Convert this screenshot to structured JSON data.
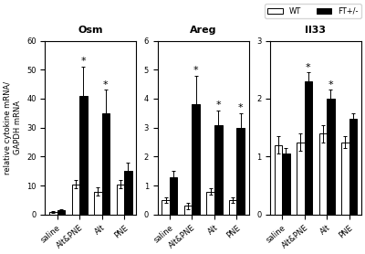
{
  "chart_data": [
    {
      "type": "bar",
      "title": "Osm",
      "y_label": "relative cytokine mRNA/\nGAPDH mRNA",
      "categories": [
        "saline",
        "Alt&PNE",
        "Alt",
        "PNE"
      ],
      "series": [
        {
          "name": "WT",
          "color": "white",
          "values": [
            1.0,
            10.5,
            8.0,
            10.5
          ],
          "errors": [
            0.3,
            1.5,
            1.5,
            1.5
          ]
        },
        {
          "name": "FT+/-",
          "color": "black",
          "values": [
            1.5,
            41.0,
            35.0,
            15.0
          ],
          "errors": [
            0.3,
            10.0,
            8.0,
            3.0
          ]
        }
      ],
      "ylim": [
        0,
        60
      ],
      "yticks": [
        0,
        10,
        20,
        30,
        40,
        50,
        60
      ],
      "annotations": [
        {
          "text": "*",
          "category": "Alt&PNE",
          "series": "FT+/-"
        },
        {
          "text": "*",
          "category": "Alt",
          "series": "FT+/-"
        }
      ]
    },
    {
      "type": "bar",
      "title": "Areg",
      "categories": [
        "saline",
        "Alt&PNE",
        "Alt",
        "PNE"
      ],
      "series": [
        {
          "name": "WT",
          "color": "white",
          "values": [
            0.5,
            0.3,
            0.8,
            0.5
          ],
          "errors": [
            0.1,
            0.1,
            0.1,
            0.1
          ]
        },
        {
          "name": "FT+/-",
          "color": "black",
          "values": [
            1.3,
            3.8,
            3.1,
            3.0
          ],
          "errors": [
            0.2,
            1.0,
            0.5,
            0.5
          ]
        }
      ],
      "ylim": [
        0,
        6
      ],
      "yticks": [
        0,
        1,
        2,
        3,
        4,
        5,
        6
      ],
      "annotations": [
        {
          "text": "*",
          "category": "Alt&PNE",
          "series": "FT+/-"
        },
        {
          "text": "*",
          "category": "Alt",
          "series": "FT+/-"
        },
        {
          "text": "*",
          "category": "PNE",
          "series": "FT+/-"
        }
      ]
    },
    {
      "type": "bar",
      "title": "Il33",
      "categories": [
        "saline",
        "Alt&PNE",
        "Alt",
        "PNE"
      ],
      "series": [
        {
          "name": "WT",
          "color": "white",
          "values": [
            1.2,
            1.25,
            1.4,
            1.25
          ],
          "errors": [
            0.15,
            0.15,
            0.15,
            0.1
          ]
        },
        {
          "name": "FT+/-",
          "color": "black",
          "values": [
            1.05,
            2.3,
            2.0,
            1.65
          ],
          "errors": [
            0.1,
            0.15,
            0.15,
            0.1
          ]
        }
      ],
      "ylim": [
        0,
        3
      ],
      "yticks": [
        0,
        1,
        2,
        3
      ],
      "legend": "upper right",
      "annotations": [
        {
          "text": "*",
          "category": "Alt&PNE",
          "series": "FT+/-"
        },
        {
          "text": "*",
          "category": "Alt",
          "series": "FT+/-"
        }
      ]
    }
  ]
}
